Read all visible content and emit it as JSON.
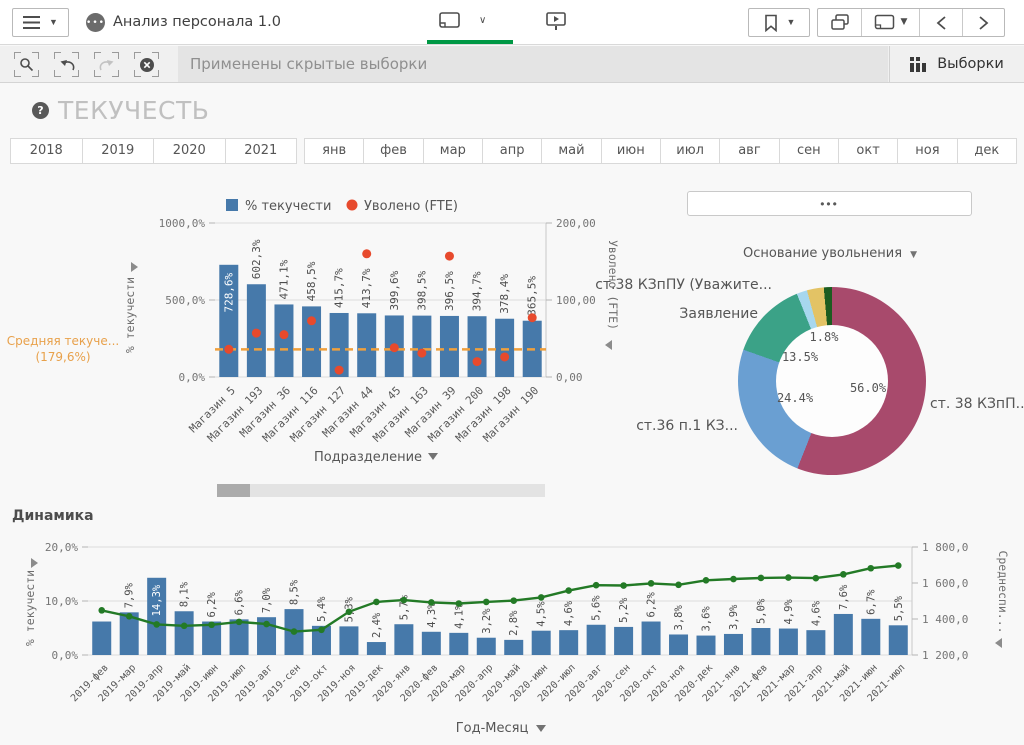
{
  "navbar": {
    "app_title": "Анализ персонала 1.0"
  },
  "selections_bar": {
    "message": "Применены скрытые выборки",
    "selections_label": "Выборки"
  },
  "sheet": {
    "title": "ТЕКУЧЕСТЬ",
    "help_glyph": "?"
  },
  "filters": {
    "years": [
      "2018",
      "2019",
      "2020",
      "2021"
    ],
    "months": [
      "янв",
      "фев",
      "мар",
      "апр",
      "май",
      "июн",
      "июл",
      "авг",
      "сен",
      "окт",
      "ноя",
      "дек"
    ]
  },
  "collapsed_filter": {
    "label": "•••"
  },
  "colors": {
    "bar_blue": "#4679aa",
    "point_red": "#e74a2d",
    "line_green": "#237a26",
    "ref_orange": "#f0a03c",
    "accent_green": "#009845"
  },
  "chart_data": [
    {
      "name": "turnover-by-store",
      "type": "bar+scatter",
      "legend": [
        "% текучести",
        "Уволено (FTE)"
      ],
      "categories": [
        "Магазин 5",
        "Магазин 193",
        "Магазин 36",
        "Магазин 116",
        "Магазин 127",
        "Магазин 44",
        "Магазин 45",
        "Магазин 163",
        "Магазин 39",
        "Магазин 200",
        "Магазин 198",
        "Магазин 190"
      ],
      "series": [
        {
          "name": "% текучести",
          "type": "bar",
          "axis": "left",
          "values": [
            728.6,
            602.3,
            471.1,
            458.5,
            415.7,
            413.7,
            399.6,
            398.5,
            396.5,
            394.7,
            378.4,
            365.5
          ],
          "labels": [
            "728,6%",
            "602,3%",
            "471,1%",
            "458,5%",
            "415,7%",
            "413,7%",
            "399,6%",
            "398,5%",
            "396,5%",
            "394,7%",
            "378,4%",
            "365,5%"
          ]
        },
        {
          "name": "Уволено (FTE)",
          "type": "point",
          "axis": "right",
          "values": [
            36,
            57,
            55,
            73,
            9,
            160,
            38,
            31,
            157,
            20,
            26,
            77
          ]
        }
      ],
      "left_axis": {
        "title": "% текучести",
        "range": [
          0,
          1000
        ],
        "ticks": [
          {
            "v": 0,
            "label": "0,0%"
          },
          {
            "v": 500,
            "label": "500,0%"
          },
          {
            "v": 1000,
            "label": "1000,0%"
          }
        ]
      },
      "right_axis": {
        "title": "Уволено (FTE)",
        "range": [
          0,
          200
        ],
        "ticks": [
          {
            "v": 0,
            "label": "0,00"
          },
          {
            "v": 100,
            "label": "100,00"
          },
          {
            "v": 200,
            "label": "200,00"
          }
        ]
      },
      "reference_line": {
        "value": 179.6,
        "label_line1": "Средняя текуче...",
        "label_line2": "(179,6%)"
      },
      "x_dimension": "Подразделение"
    },
    {
      "name": "dismissal-reason",
      "type": "pie",
      "dimension_header": "Основание увольнения",
      "slices": [
        {
          "label": "ст. 38 КЗпП...",
          "value": 56.0,
          "pct_label": "56.0%",
          "color": "#a84a6c"
        },
        {
          "label": "ст.36 п.1 КЗ...",
          "value": 24.4,
          "pct_label": "24.4%",
          "color": "#6a9fd2"
        },
        {
          "label": "Заявление",
          "value": 13.5,
          "pct_label": "13.5%",
          "color": "#3ba287"
        },
        {
          "label": "ст.38 КЗпПУ (Уважите...",
          "value": 1.8,
          "pct_label": "1.8%",
          "color": "#a7d7ee"
        },
        {
          "label": "",
          "value": 2.9,
          "pct_label": "",
          "color": "#e3c365"
        },
        {
          "label": "",
          "value": 1.4,
          "pct_label": "",
          "color": "#1c5c20"
        }
      ]
    },
    {
      "name": "dynamics",
      "type": "bar+line",
      "title": "Динамика",
      "categories": [
        "2019-фев",
        "2019-мар",
        "2019-апр",
        "2019-май",
        "2019-июн",
        "2019-июл",
        "2019-авг",
        "2019-сен",
        "2019-окт",
        "2019-ноя",
        "2019-дек",
        "2020-янв",
        "2020-фев",
        "2020-мар",
        "2020-апр",
        "2020-май",
        "2020-июн",
        "2020-июл",
        "2020-авг",
        "2020-сен",
        "2020-окт",
        "2020-ноя",
        "2020-дек",
        "2021-янв",
        "2021-фев",
        "2021-мар",
        "2021-апр",
        "2021-май",
        "2021-июн",
        "2021-июл"
      ],
      "series": [
        {
          "name": "% текучести",
          "type": "bar",
          "axis": "left",
          "values": [
            6.2,
            7.9,
            14.3,
            8.1,
            6.2,
            6.6,
            7.0,
            8.5,
            5.4,
            5.3,
            2.4,
            5.7,
            4.3,
            4.1,
            3.2,
            2.8,
            4.5,
            4.6,
            5.6,
            5.2,
            6.2,
            3.8,
            3.6,
            3.9,
            5.0,
            4.9,
            4.6,
            7.6,
            6.7,
            5.5
          ],
          "labels": [
            "",
            "7,9%",
            "14,3%",
            "8,1%",
            "6,2%",
            "6,6%",
            "7,0%",
            "8,5%",
            "5,4%",
            "5,3%",
            "2,4%",
            "5,7%",
            "4,3%",
            "4,1%",
            "3,2%",
            "2,8%",
            "4,5%",
            "4,6%",
            "5,6%",
            "5,2%",
            "6,2%",
            "3,8%",
            "3,6%",
            "3,9%",
            "5,0%",
            "4,9%",
            "4,6%",
            "7,6%",
            "6,7%",
            "5,5%"
          ]
        },
        {
          "name": "Среднеспи...",
          "type": "line",
          "axis": "right",
          "values": [
            1448,
            1415,
            1370,
            1362,
            1368,
            1384,
            1372,
            1330,
            1340,
            1440,
            1495,
            1505,
            1492,
            1486,
            1495,
            1502,
            1520,
            1558,
            1588,
            1586,
            1598,
            1590,
            1615,
            1622,
            1628,
            1630,
            1627,
            1648,
            1682,
            1697
          ]
        }
      ],
      "left_axis": {
        "title": "% текучести",
        "range": [
          0,
          20
        ],
        "ticks": [
          {
            "v": 0,
            "label": "0,0%"
          },
          {
            "v": 10,
            "label": "10,0%"
          },
          {
            "v": 20,
            "label": "20,0%"
          }
        ]
      },
      "right_axis": {
        "title": "Среднеспи...",
        "range": [
          1200,
          1800
        ],
        "ticks": [
          {
            "v": 1200,
            "label": "1 200,0"
          },
          {
            "v": 1400,
            "label": "1 400,0"
          },
          {
            "v": 1600,
            "label": "1 600,0"
          },
          {
            "v": 1800,
            "label": "1 800,0"
          }
        ]
      },
      "x_dimension": "Год-Месяц"
    }
  ]
}
